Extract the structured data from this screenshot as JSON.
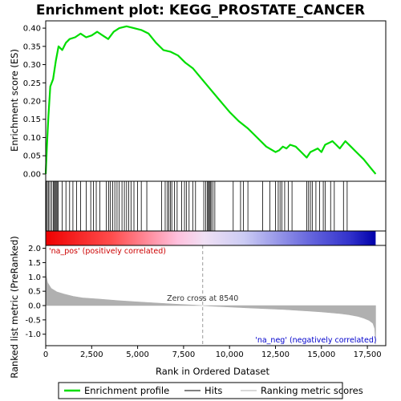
{
  "chart_data": {
    "type": "line",
    "title": "Enrichment plot: KEGG_PROSTATE_CANCER",
    "xlabel": "Rank in Ordered Dataset",
    "ylabel_top": "Enrichment score (ES)",
    "ylabel_bottom": "Ranked list metric (PreRanked)",
    "xlim": [
      0,
      18500
    ],
    "x_ticks": [
      0,
      2500,
      5000,
      7500,
      10000,
      12500,
      15000,
      17500
    ],
    "x_tick_labels": [
      "0",
      "2,500",
      "5,000",
      "7,500",
      "10,000",
      "12,500",
      "15,000",
      "17,500"
    ],
    "es_ylim": [
      -0.02,
      0.42
    ],
    "es_ticks": [
      0.0,
      0.05,
      0.1,
      0.15,
      0.2,
      0.25,
      0.3,
      0.35,
      0.4
    ],
    "es_tick_labels": [
      "0.00",
      "0.05",
      "0.10",
      "0.15",
      "0.20",
      "0.25",
      "0.30",
      "0.35",
      "0.40"
    ],
    "metric_ylim": [
      -1.4,
      2.1
    ],
    "metric_ticks": [
      -1.0,
      -0.5,
      0.0,
      0.5,
      1.0,
      1.5,
      2.0
    ],
    "metric_tick_labels": [
      "-1.0",
      "-0.5",
      "0.0",
      "0.5",
      "1.0",
      "1.5",
      "2.0"
    ],
    "enrichment_profile": {
      "name": "Enrichment profile",
      "color": "#00dd00",
      "x": [
        0,
        80,
        150,
        250,
        400,
        550,
        700,
        900,
        1100,
        1300,
        1600,
        1900,
        2200,
        2500,
        2800,
        3100,
        3400,
        3700,
        4000,
        4400,
        4800,
        5200,
        5600,
        6000,
        6400,
        6800,
        7200,
        7600,
        8000,
        8500,
        9000,
        9500,
        10000,
        10500,
        11000,
        11500,
        12000,
        12500,
        12700,
        12900,
        13100,
        13300,
        13600,
        13900,
        14200,
        14400,
        14600,
        14800,
        15000,
        15200,
        15400,
        15600,
        15800,
        16000,
        16300,
        16600,
        16900,
        17300,
        17700,
        17950
      ],
      "y": [
        0.0,
        0.09,
        0.16,
        0.24,
        0.26,
        0.31,
        0.35,
        0.34,
        0.36,
        0.37,
        0.375,
        0.385,
        0.375,
        0.38,
        0.39,
        0.38,
        0.37,
        0.39,
        0.4,
        0.405,
        0.4,
        0.395,
        0.385,
        0.36,
        0.34,
        0.335,
        0.325,
        0.305,
        0.29,
        0.26,
        0.23,
        0.2,
        0.17,
        0.145,
        0.125,
        0.1,
        0.075,
        0.06,
        0.065,
        0.075,
        0.07,
        0.08,
        0.075,
        0.06,
        0.045,
        0.06,
        0.065,
        0.07,
        0.06,
        0.08,
        0.085,
        0.09,
        0.08,
        0.07,
        0.09,
        0.075,
        0.06,
        0.04,
        0.015,
        0.0
      ]
    },
    "hits": {
      "name": "Hits",
      "x": [
        30,
        90,
        160,
        230,
        330,
        420,
        470,
        520,
        570,
        620,
        680,
        900,
        1100,
        1300,
        1480,
        1680,
        1900,
        2200,
        2450,
        2600,
        2750,
        2950,
        3300,
        3420,
        3520,
        3640,
        3760,
        3880,
        4000,
        4150,
        4280,
        4400,
        4520,
        4640,
        4800,
        5000,
        5200,
        5500,
        6300,
        6500,
        6620,
        6700,
        6780,
        6860,
        7000,
        7150,
        7400,
        7550,
        7650,
        7800,
        8000,
        8150,
        8600,
        8700,
        8800,
        8850,
        8900,
        8950,
        9000,
        9100,
        9200,
        10200,
        10600,
        10750,
        11000,
        11800,
        12200,
        12500,
        12650,
        12750,
        12850,
        13000,
        13200,
        13400,
        14200,
        14300,
        14400,
        14500,
        14700,
        14900,
        15100,
        15200,
        15500,
        15700,
        16200,
        16400
      ]
    },
    "ranking_metric": {
      "name": "Ranking metric scores",
      "color": "#b0b0b0",
      "x": [
        0,
        30,
        100,
        300,
        600,
        1000,
        1500,
        2000,
        3000,
        4000,
        5000,
        6000,
        7000,
        8000,
        8540,
        9000,
        10000,
        11000,
        12000,
        13000,
        14000,
        15000,
        16000,
        16500,
        17000,
        17300,
        17600,
        17800,
        17900,
        17950
      ],
      "y": [
        1.6,
        1.05,
        0.8,
        0.6,
        0.48,
        0.4,
        0.32,
        0.27,
        0.22,
        0.17,
        0.13,
        0.09,
        0.05,
        0.02,
        0.0,
        -0.02,
        -0.05,
        -0.08,
        -0.11,
        -0.14,
        -0.18,
        -0.22,
        -0.28,
        -0.32,
        -0.38,
        -0.44,
        -0.52,
        -0.62,
        -0.8,
        -1.35
      ]
    },
    "zero_cross": {
      "x": 8540,
      "label": "Zero cross at 8540"
    },
    "na_pos_label": "'na_pos' (positively correlated)",
    "na_neg_label": "'na_neg' (negatively correlated)",
    "legend": [
      {
        "key": "enrichment",
        "label": "Enrichment profile",
        "color": "#00dd00"
      },
      {
        "key": "hits",
        "label": "Hits",
        "color": "#000000"
      },
      {
        "key": "ranking",
        "label": "Ranking metric scores",
        "color": "#b0b0b0"
      }
    ]
  }
}
